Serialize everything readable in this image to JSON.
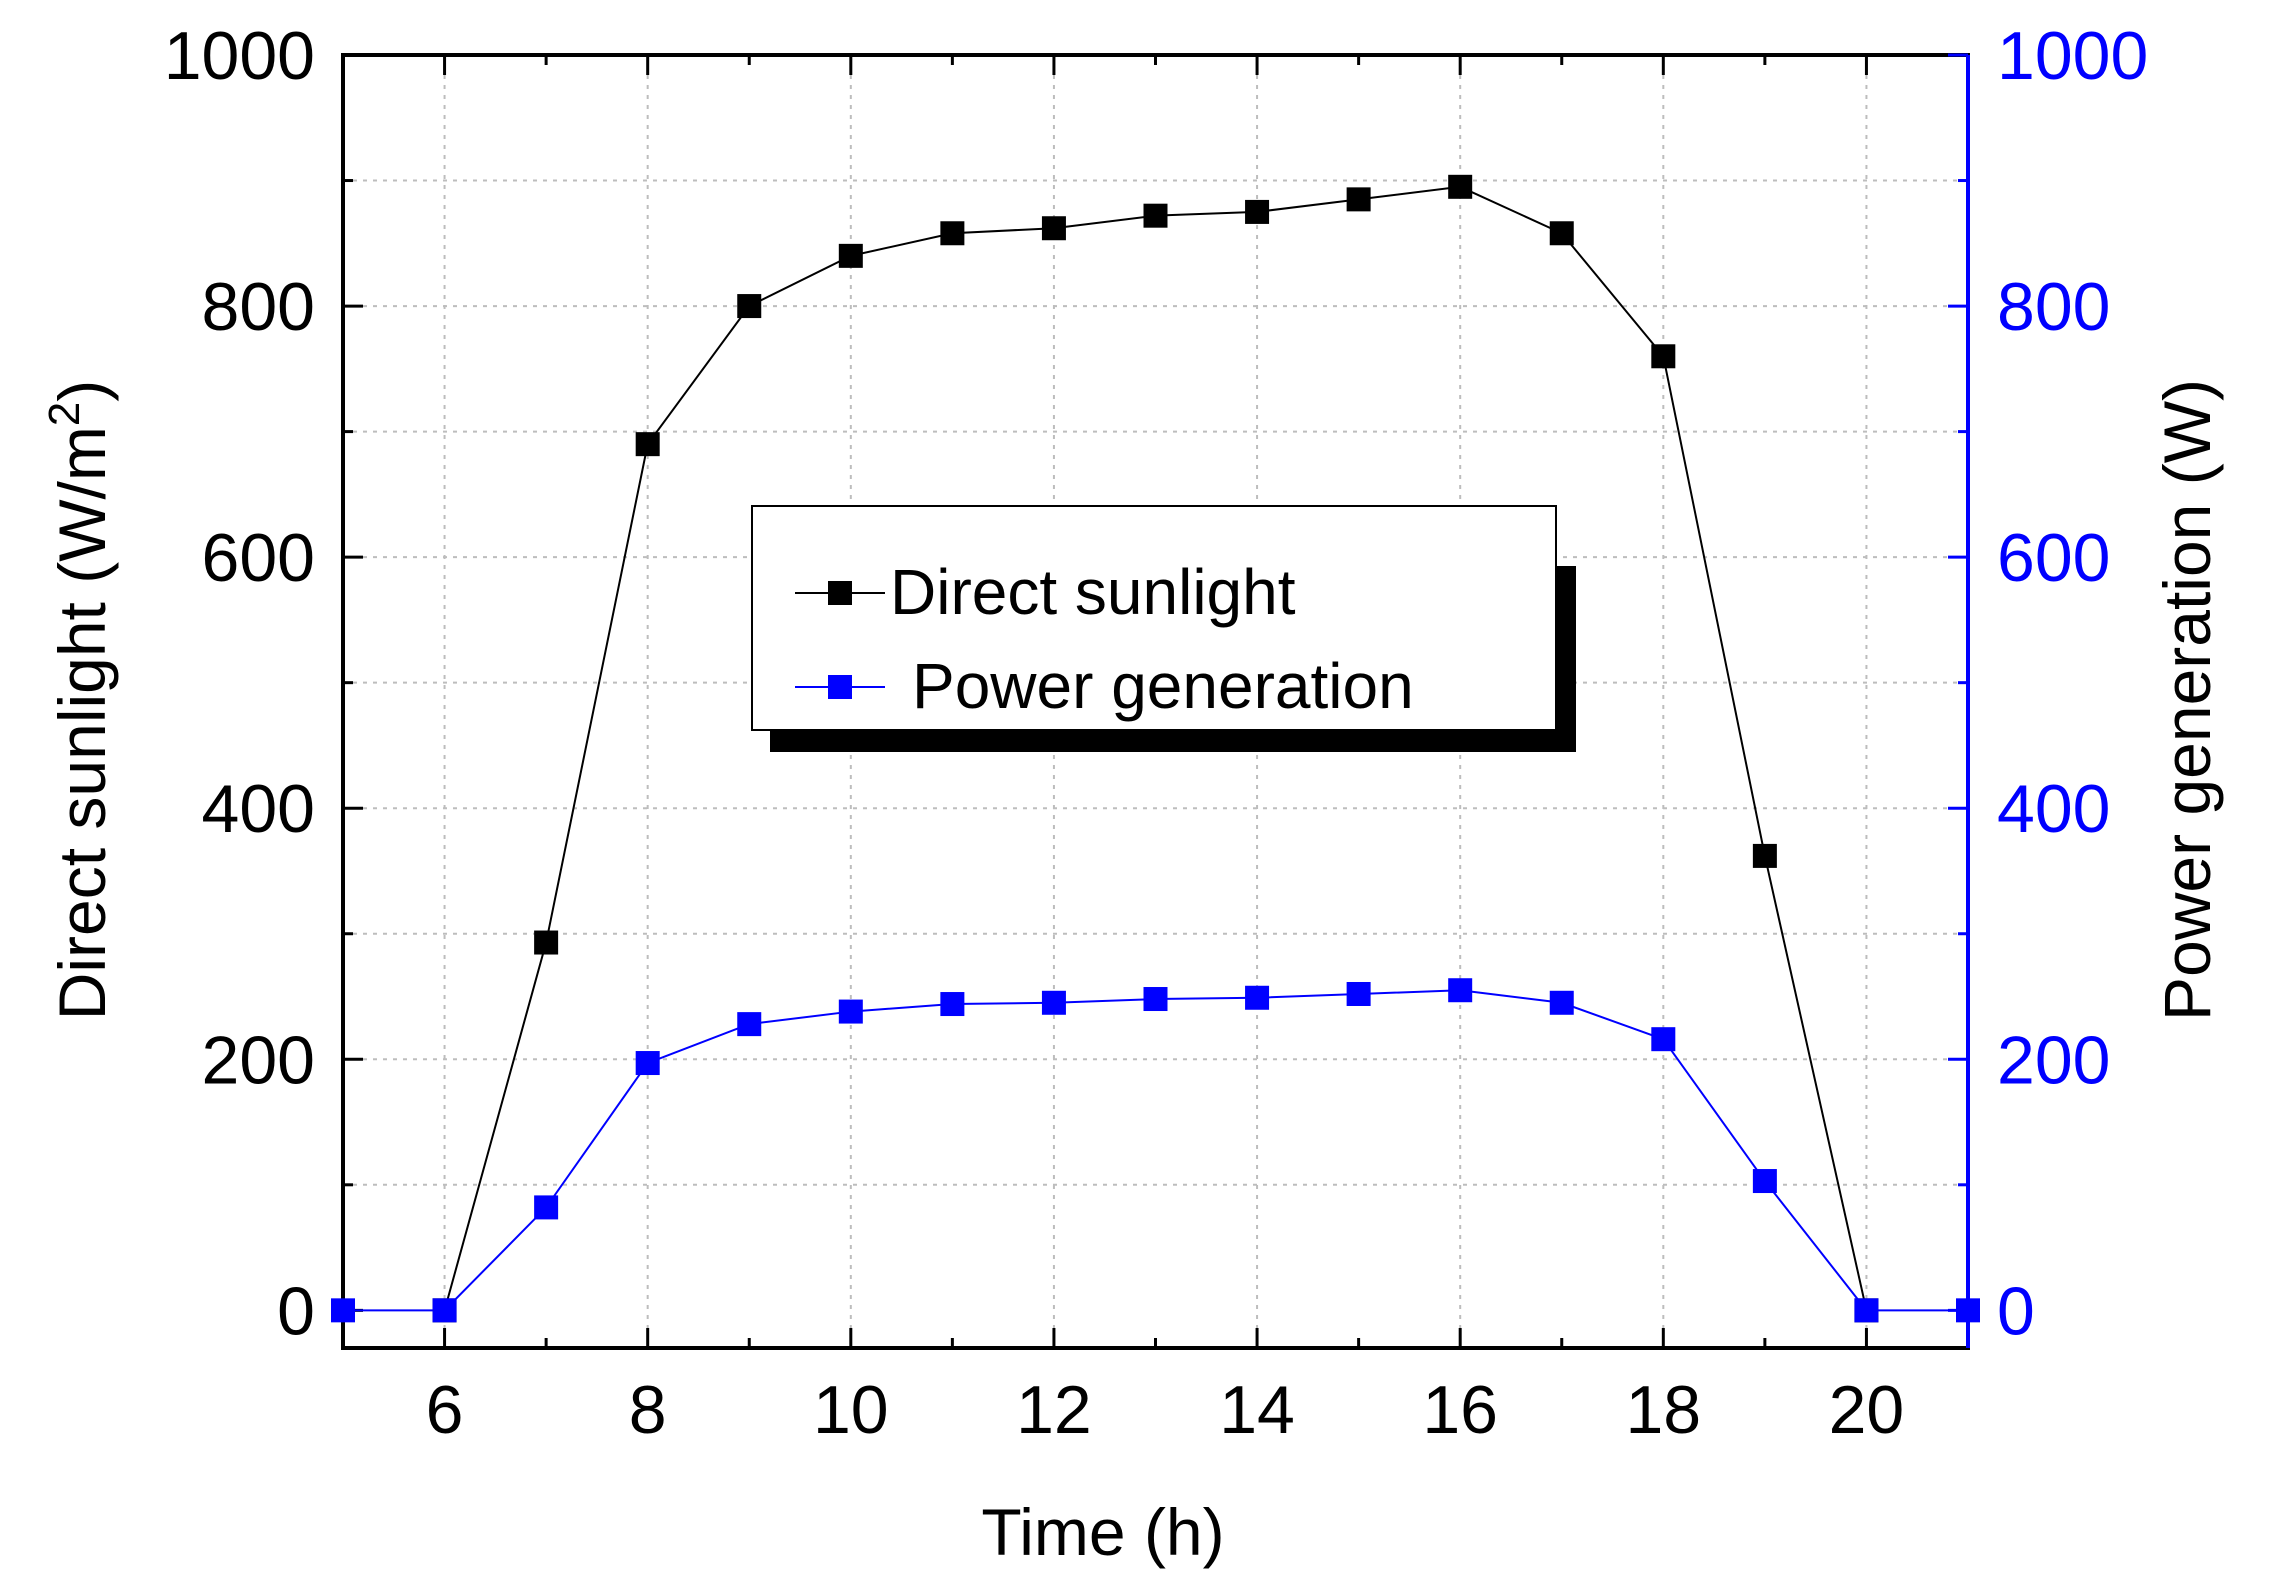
{
  "chart_data": {
    "type": "line",
    "title": "",
    "xlabel": "Time (h)",
    "ylabel_left": "Direct sunlight (W/m",
    "ylabel_left_sup": "2",
    "ylabel_left_close": ")",
    "ylabel_right": "Power generation  (W)",
    "xlim": [
      5,
      21
    ],
    "ylim_left": [
      -30,
      1000
    ],
    "ylim_right": [
      -30,
      1000
    ],
    "xticks": [
      "6",
      "8",
      "10",
      "12",
      "14",
      "16",
      "18",
      "20"
    ],
    "yticks_left": [
      "0",
      "200",
      "400",
      "600",
      "800",
      "1000"
    ],
    "yticks_right": [
      "0",
      "200",
      "400",
      "600",
      "800",
      "1000"
    ],
    "grid": true,
    "legend_position": "center-top",
    "series": [
      {
        "name": "Direct sunlight",
        "axis": "left",
        "color": "#000000",
        "x": [
          6,
          7,
          8,
          9,
          10,
          11,
          12,
          13,
          14,
          15,
          16,
          17,
          18,
          19,
          20
        ],
        "y": [
          0,
          293,
          690,
          800,
          840,
          858,
          862,
          872,
          875,
          885,
          895,
          858,
          760,
          362,
          0
        ]
      },
      {
        "name": "Power generation",
        "axis": "right",
        "color": "#0000ff",
        "x": [
          5,
          6,
          7,
          8,
          9,
          10,
          11,
          12,
          13,
          14,
          15,
          16,
          17,
          18,
          19,
          20,
          21
        ],
        "y": [
          0,
          0,
          82,
          197,
          228,
          238,
          244,
          245,
          248,
          249,
          252,
          255,
          245,
          216,
          103,
          0,
          0
        ]
      }
    ]
  }
}
